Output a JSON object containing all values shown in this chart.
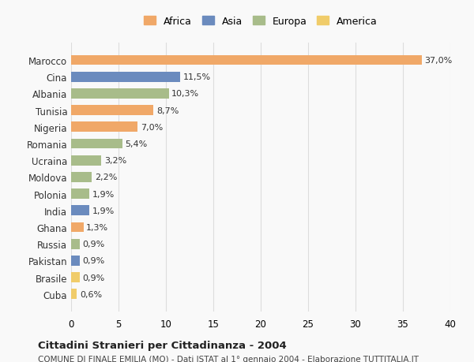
{
  "countries": [
    "Marocco",
    "Cina",
    "Albania",
    "Tunisia",
    "Nigeria",
    "Romania",
    "Ucraina",
    "Moldova",
    "Polonia",
    "India",
    "Ghana",
    "Russia",
    "Pakistan",
    "Brasile",
    "Cuba"
  ],
  "values": [
    37.0,
    11.5,
    10.3,
    8.7,
    7.0,
    5.4,
    3.2,
    2.2,
    1.9,
    1.9,
    1.3,
    0.9,
    0.9,
    0.9,
    0.6
  ],
  "labels": [
    "37,0%",
    "11,5%",
    "10,3%",
    "8,7%",
    "7,0%",
    "5,4%",
    "3,2%",
    "2,2%",
    "1,9%",
    "1,9%",
    "1,3%",
    "0,9%",
    "0,9%",
    "0,9%",
    "0,6%"
  ],
  "continents": [
    "Africa",
    "Asia",
    "Europa",
    "Africa",
    "Africa",
    "Europa",
    "Europa",
    "Europa",
    "Europa",
    "Asia",
    "Africa",
    "Europa",
    "Asia",
    "America",
    "America"
  ],
  "colors": {
    "Africa": "#F0A868",
    "Asia": "#6B8BBE",
    "Europa": "#A8BC8A",
    "America": "#F0CC6A"
  },
  "legend_order": [
    "Africa",
    "Asia",
    "Europa",
    "America"
  ],
  "title": "Cittadini Stranieri per Cittadinanza - 2004",
  "subtitle": "COMUNE DI FINALE EMILIA (MO) - Dati ISTAT al 1° gennaio 2004 - Elaborazione TUTTITALIA.IT",
  "xlim": [
    0,
    40
  ],
  "xticks": [
    0,
    5,
    10,
    15,
    20,
    25,
    30,
    35,
    40
  ],
  "bg_color": "#f9f9f9",
  "grid_color": "#dddddd"
}
